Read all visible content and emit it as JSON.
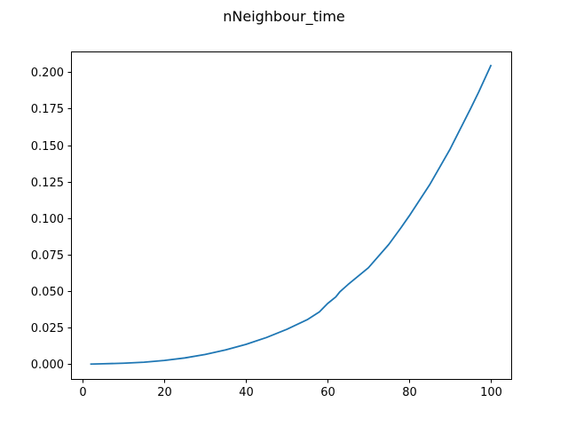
{
  "figure": {
    "title": "nNeighbour_time"
  },
  "chart_data": {
    "type": "line",
    "title": "nNeighbour_time",
    "xlabel": "",
    "ylabel": "",
    "xlim": [
      -2.9,
      105
    ],
    "ylim": [
      -0.0102,
      0.2142
    ],
    "x_ticks": [
      0,
      20,
      40,
      60,
      80,
      100
    ],
    "x_tick_labels": [
      "0",
      "20",
      "40",
      "60",
      "80",
      "100"
    ],
    "y_ticks": [
      0.0,
      0.025,
      0.05,
      0.075,
      0.1,
      0.125,
      0.15,
      0.175,
      0.2
    ],
    "y_tick_labels": [
      "0.000",
      "0.025",
      "0.050",
      "0.075",
      "0.100",
      "0.125",
      "0.150",
      "0.175",
      "0.200"
    ],
    "grid": false,
    "colors": {
      "series": "#1f77b4"
    },
    "series": [
      {
        "x": [
          2,
          5,
          10,
          15,
          20,
          25,
          30,
          35,
          40,
          45,
          50,
          55,
          58,
          60,
          62,
          63,
          65,
          70,
          75,
          78,
          80,
          85,
          90,
          95,
          97,
          100
        ],
        "values": [
          0.0,
          0.0002,
          0.0006,
          0.0013,
          0.0025,
          0.0042,
          0.0066,
          0.0097,
          0.0135,
          0.0182,
          0.0238,
          0.0304,
          0.0358,
          0.0415,
          0.046,
          0.0495,
          0.0545,
          0.066,
          0.082,
          0.0935,
          0.1015,
          0.1228,
          0.1472,
          0.1748,
          0.1862,
          0.2045
        ]
      }
    ]
  }
}
